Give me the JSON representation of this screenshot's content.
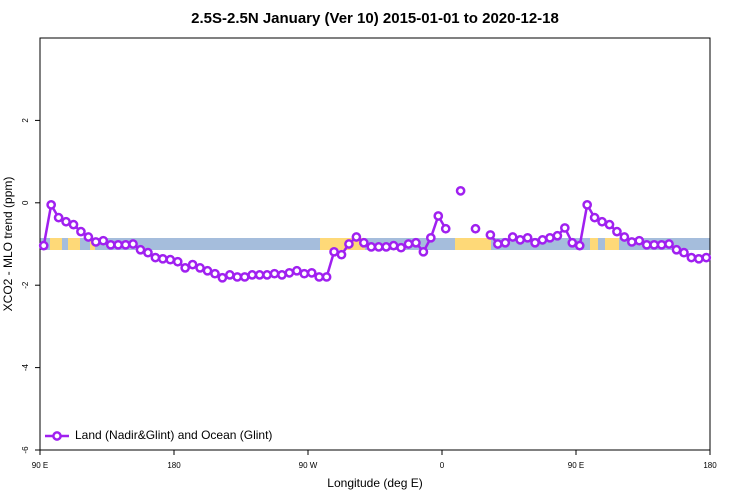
{
  "chart_data": {
    "type": "line",
    "title": "2.5S-2.5N January (Ver 10)   2015-01-01 to 2020-12-18",
    "xlabel": "Longitude (deg E)",
    "ylabel": "XCO2 - MLO trend (ppm)",
    "x": [
      92.5,
      97.5,
      102.5,
      107.5,
      112.5,
      117.5,
      122.5,
      127.5,
      132.5,
      137.5,
      142.5,
      147.5,
      152.5,
      157.5,
      162.5,
      167.5,
      172.5,
      177.5,
      182.5,
      187.5,
      192.5,
      197.5,
      202.5,
      207.5,
      212.5,
      217.5,
      222.5,
      227.5,
      232.5,
      237.5,
      242.5,
      247.5,
      252.5,
      257.5,
      262.5,
      267.5,
      272.5,
      277.5,
      282.5,
      287.5,
      292.5,
      297.5,
      302.5,
      307.5,
      312.5,
      317.5,
      322.5,
      327.5,
      332.5,
      337.5,
      342.5,
      347.5,
      352.5,
      357.5,
      362.5,
      367.5,
      372.5,
      377.5,
      382.5,
      387.5,
      392.5,
      397.5,
      402.5,
      407.5,
      412.5,
      417.5,
      422.5,
      427.5,
      432.5,
      437.5,
      442.5,
      447.5,
      452.5,
      457.5,
      462.5,
      467.5,
      472.5,
      477.5,
      482.5,
      487.5,
      492.5,
      497.5,
      502.5,
      507.5,
      512.5,
      517.5,
      522.5,
      527.5,
      532.5,
      537.5
    ],
    "series": [
      {
        "name": "Land (Nadir&Glint) and Ocean (Glint)",
        "color": "#a020f0",
        "values": [
          -1.04,
          -0.05,
          -0.36,
          -0.46,
          -0.53,
          -0.7,
          -0.83,
          -0.95,
          -0.92,
          -1.02,
          -1.02,
          -1.02,
          -1.0,
          -1.14,
          -1.21,
          -1.33,
          -1.36,
          -1.38,
          -1.43,
          -1.58,
          -1.5,
          -1.58,
          -1.65,
          -1.72,
          -1.82,
          -1.75,
          -1.8,
          -1.8,
          -1.75,
          -1.75,
          -1.75,
          -1.72,
          -1.75,
          -1.7,
          -1.65,
          -1.72,
          -1.7,
          -1.8,
          -1.8,
          -1.19,
          -1.26,
          -1.0,
          -0.83,
          -0.97,
          -1.07,
          -1.07,
          -1.07,
          -1.04,
          -1.09,
          -1.0,
          -0.97,
          -1.19,
          -0.85,
          -0.32,
          -0.63,
          null,
          0.29,
          null,
          -0.63,
          null,
          -0.78,
          -1.0,
          -0.97,
          -0.83,
          -0.9,
          -0.85,
          -0.97,
          -0.9,
          -0.85,
          -0.8,
          -0.61,
          -0.97,
          -1.04,
          -0.05,
          -0.36,
          -0.46,
          -0.53,
          -0.7,
          -0.83,
          -0.95,
          -0.92,
          -1.02,
          -1.02,
          -1.02,
          -1.0,
          -1.14,
          -1.21,
          -1.33,
          -1.36,
          -1.33
        ]
      }
    ],
    "xlim": [
      90,
      540
    ],
    "xticks": [
      {
        "value": 90,
        "label": "90 E"
      },
      180,
      {
        "value": 270,
        "label": "90 W"
      },
      {
        "value": 360,
        "label": "0"
      },
      {
        "value": 450,
        "label": "90 E"
      },
      {
        "value": 540,
        "label": "180"
      }
    ],
    "ylim": [
      -6,
      4
    ],
    "yticks": [
      -6,
      -4,
      -2,
      0,
      2
    ],
    "legend": "bottom-left"
  }
}
